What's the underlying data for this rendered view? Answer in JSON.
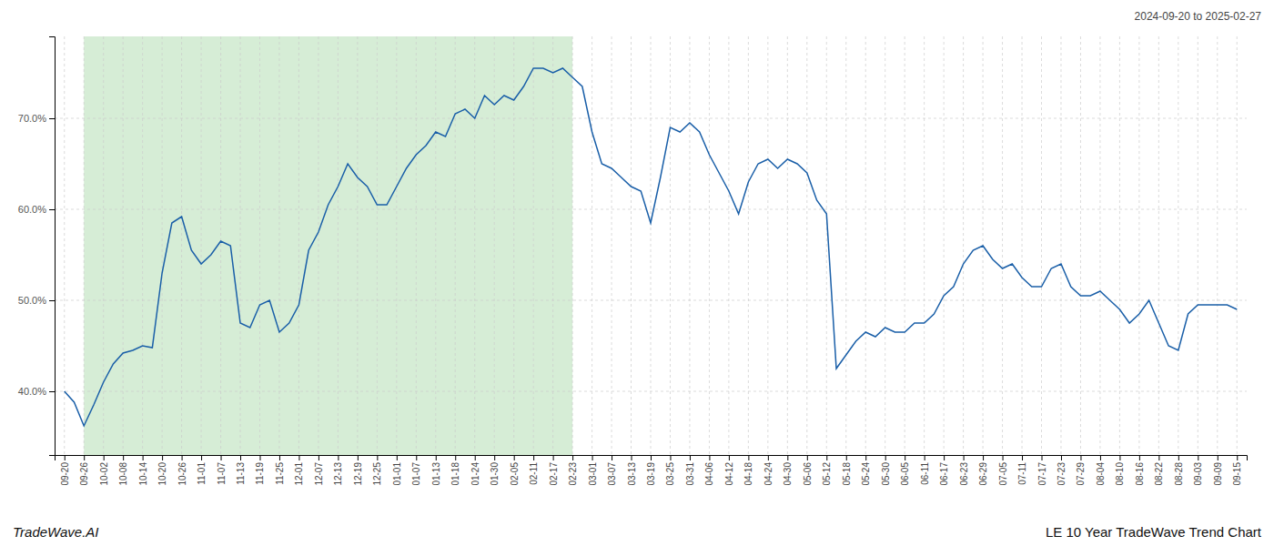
{
  "chart_data": {
    "type": "line",
    "title": "LE 10 Year TradeWave Trend Chart",
    "subtitle": "2024-09-20 to 2025-02-27",
    "annotations": [
      "TradeWave.AI"
    ],
    "color": "#1a5fa8",
    "grid": true,
    "ylim": [
      33,
      79
    ],
    "yticks": [
      {
        "value": 40,
        "label": "40.0%"
      },
      {
        "value": 50,
        "label": "50.0%"
      },
      {
        "value": 60,
        "label": "60.0%"
      },
      {
        "value": 70,
        "label": "70.0%"
      }
    ],
    "span": {
      "from": "09-26",
      "to": "02-23",
      "color": "#d6edd6"
    },
    "categories": [
      "09-20",
      null,
      "09-26",
      null,
      "10-02",
      null,
      "10-08",
      null,
      "10-14",
      null,
      "10-20",
      null,
      "10-26",
      null,
      "11-01",
      null,
      "11-07",
      null,
      "11-13",
      null,
      "11-19",
      null,
      "11-25",
      null,
      "12-01",
      null,
      "12-07",
      null,
      "12-13",
      null,
      "12-19",
      null,
      "12-25",
      null,
      "01-01",
      null,
      "01-07",
      null,
      "01-13",
      null,
      "01-18",
      null,
      "01-24",
      null,
      "01-30",
      null,
      "02-05",
      null,
      "02-11",
      null,
      "02-17",
      null,
      "02-23",
      null,
      "03-01",
      null,
      "03-07",
      null,
      "03-13",
      null,
      "03-19",
      null,
      "03-25",
      null,
      "03-31",
      null,
      "04-06",
      null,
      "04-12",
      null,
      "04-18",
      null,
      "04-24",
      null,
      "04-30",
      null,
      "05-06",
      null,
      "05-12",
      null,
      "05-18",
      null,
      "05-24",
      null,
      "05-30",
      null,
      "06-05",
      null,
      "06-11",
      null,
      "06-17",
      null,
      "06-23",
      null,
      "06-29",
      null,
      "07-05",
      null,
      "07-11",
      null,
      "07-17",
      null,
      "07-23",
      null,
      "07-29",
      null,
      "08-04",
      null,
      "08-10",
      null,
      "08-16",
      null,
      "08-22",
      null,
      "08-28",
      null,
      "09-03",
      null,
      "09-09",
      null,
      "09-15"
    ],
    "values": [
      40.0,
      38.8,
      36.2,
      38.5,
      41.0,
      43.0,
      44.2,
      44.5,
      45.0,
      44.8,
      53.0,
      58.5,
      59.2,
      55.5,
      54.0,
      55.0,
      56.5,
      56.0,
      47.5,
      47.0,
      49.5,
      50.0,
      46.5,
      47.5,
      49.5,
      55.5,
      57.5,
      60.5,
      62.5,
      65.0,
      63.5,
      62.5,
      60.5,
      60.5,
      62.5,
      64.5,
      66.0,
      67.0,
      68.5,
      68.0,
      70.5,
      71.0,
      70.0,
      72.5,
      71.5,
      72.5,
      72.0,
      73.5,
      75.5,
      75.5,
      75.0,
      75.5,
      74.5,
      73.5,
      68.5,
      65.0,
      64.5,
      63.5,
      62.5,
      62.0,
      58.5,
      63.5,
      69.0,
      68.5,
      69.5,
      68.5,
      66.0,
      64.0,
      62.0,
      59.5,
      63.0,
      65.0,
      65.5,
      64.5,
      65.5,
      65.0,
      64.0,
      61.0,
      59.5,
      42.5,
      44.0,
      45.5,
      46.5,
      46.0,
      47.0,
      46.5,
      46.5,
      47.5,
      47.5,
      48.5,
      50.5,
      51.5,
      54.0,
      55.5,
      56.0,
      54.5,
      53.5,
      54.0,
      52.5,
      51.5,
      51.5,
      53.5,
      54.0,
      51.5,
      50.5,
      50.5,
      51.0,
      50.0,
      49.0,
      47.5,
      48.5,
      50.0,
      47.5,
      45.0,
      44.5,
      48.5,
      49.5,
      49.5,
      49.5,
      49.5,
      49.0
    ]
  }
}
